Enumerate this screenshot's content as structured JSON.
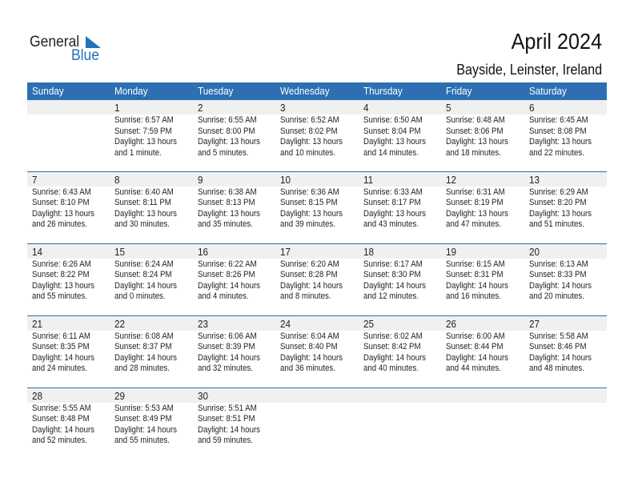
{
  "logo": {
    "text_general": "General",
    "text_blue": "Blue"
  },
  "title": "April 2024",
  "location": "Bayside, Leinster, Ireland",
  "colors": {
    "header": "#2d6fb2",
    "band": "#f0f0f0",
    "logo_blue": "#2471b9"
  },
  "weekdays": [
    "Sunday",
    "Monday",
    "Tuesday",
    "Wednesday",
    "Thursday",
    "Friday",
    "Saturday"
  ],
  "weeks": [
    [
      null,
      {
        "day": "1",
        "sunrise": "Sunrise: 6:57 AM",
        "sunset": "Sunset: 7:59 PM",
        "daylight1": "Daylight: 13 hours",
        "daylight2": "and 1 minute."
      },
      {
        "day": "2",
        "sunrise": "Sunrise: 6:55 AM",
        "sunset": "Sunset: 8:00 PM",
        "daylight1": "Daylight: 13 hours",
        "daylight2": "and 5 minutes."
      },
      {
        "day": "3",
        "sunrise": "Sunrise: 6:52 AM",
        "sunset": "Sunset: 8:02 PM",
        "daylight1": "Daylight: 13 hours",
        "daylight2": "and 10 minutes."
      },
      {
        "day": "4",
        "sunrise": "Sunrise: 6:50 AM",
        "sunset": "Sunset: 8:04 PM",
        "daylight1": "Daylight: 13 hours",
        "daylight2": "and 14 minutes."
      },
      {
        "day": "5",
        "sunrise": "Sunrise: 6:48 AM",
        "sunset": "Sunset: 8:06 PM",
        "daylight1": "Daylight: 13 hours",
        "daylight2": "and 18 minutes."
      },
      {
        "day": "6",
        "sunrise": "Sunrise: 6:45 AM",
        "sunset": "Sunset: 8:08 PM",
        "daylight1": "Daylight: 13 hours",
        "daylight2": "and 22 minutes."
      }
    ],
    [
      {
        "day": "7",
        "sunrise": "Sunrise: 6:43 AM",
        "sunset": "Sunset: 8:10 PM",
        "daylight1": "Daylight: 13 hours",
        "daylight2": "and 26 minutes."
      },
      {
        "day": "8",
        "sunrise": "Sunrise: 6:40 AM",
        "sunset": "Sunset: 8:11 PM",
        "daylight1": "Daylight: 13 hours",
        "daylight2": "and 30 minutes."
      },
      {
        "day": "9",
        "sunrise": "Sunrise: 6:38 AM",
        "sunset": "Sunset: 8:13 PM",
        "daylight1": "Daylight: 13 hours",
        "daylight2": "and 35 minutes."
      },
      {
        "day": "10",
        "sunrise": "Sunrise: 6:36 AM",
        "sunset": "Sunset: 8:15 PM",
        "daylight1": "Daylight: 13 hours",
        "daylight2": "and 39 minutes."
      },
      {
        "day": "11",
        "sunrise": "Sunrise: 6:33 AM",
        "sunset": "Sunset: 8:17 PM",
        "daylight1": "Daylight: 13 hours",
        "daylight2": "and 43 minutes."
      },
      {
        "day": "12",
        "sunrise": "Sunrise: 6:31 AM",
        "sunset": "Sunset: 8:19 PM",
        "daylight1": "Daylight: 13 hours",
        "daylight2": "and 47 minutes."
      },
      {
        "day": "13",
        "sunrise": "Sunrise: 6:29 AM",
        "sunset": "Sunset: 8:20 PM",
        "daylight1": "Daylight: 13 hours",
        "daylight2": "and 51 minutes."
      }
    ],
    [
      {
        "day": "14",
        "sunrise": "Sunrise: 6:26 AM",
        "sunset": "Sunset: 8:22 PM",
        "daylight1": "Daylight: 13 hours",
        "daylight2": "and 55 minutes."
      },
      {
        "day": "15",
        "sunrise": "Sunrise: 6:24 AM",
        "sunset": "Sunset: 8:24 PM",
        "daylight1": "Daylight: 14 hours",
        "daylight2": "and 0 minutes."
      },
      {
        "day": "16",
        "sunrise": "Sunrise: 6:22 AM",
        "sunset": "Sunset: 8:26 PM",
        "daylight1": "Daylight: 14 hours",
        "daylight2": "and 4 minutes."
      },
      {
        "day": "17",
        "sunrise": "Sunrise: 6:20 AM",
        "sunset": "Sunset: 8:28 PM",
        "daylight1": "Daylight: 14 hours",
        "daylight2": "and 8 minutes."
      },
      {
        "day": "18",
        "sunrise": "Sunrise: 6:17 AM",
        "sunset": "Sunset: 8:30 PM",
        "daylight1": "Daylight: 14 hours",
        "daylight2": "and 12 minutes."
      },
      {
        "day": "19",
        "sunrise": "Sunrise: 6:15 AM",
        "sunset": "Sunset: 8:31 PM",
        "daylight1": "Daylight: 14 hours",
        "daylight2": "and 16 minutes."
      },
      {
        "day": "20",
        "sunrise": "Sunrise: 6:13 AM",
        "sunset": "Sunset: 8:33 PM",
        "daylight1": "Daylight: 14 hours",
        "daylight2": "and 20 minutes."
      }
    ],
    [
      {
        "day": "21",
        "sunrise": "Sunrise: 6:11 AM",
        "sunset": "Sunset: 8:35 PM",
        "daylight1": "Daylight: 14 hours",
        "daylight2": "and 24 minutes."
      },
      {
        "day": "22",
        "sunrise": "Sunrise: 6:08 AM",
        "sunset": "Sunset: 8:37 PM",
        "daylight1": "Daylight: 14 hours",
        "daylight2": "and 28 minutes."
      },
      {
        "day": "23",
        "sunrise": "Sunrise: 6:06 AM",
        "sunset": "Sunset: 8:39 PM",
        "daylight1": "Daylight: 14 hours",
        "daylight2": "and 32 minutes."
      },
      {
        "day": "24",
        "sunrise": "Sunrise: 6:04 AM",
        "sunset": "Sunset: 8:40 PM",
        "daylight1": "Daylight: 14 hours",
        "daylight2": "and 36 minutes."
      },
      {
        "day": "25",
        "sunrise": "Sunrise: 6:02 AM",
        "sunset": "Sunset: 8:42 PM",
        "daylight1": "Daylight: 14 hours",
        "daylight2": "and 40 minutes."
      },
      {
        "day": "26",
        "sunrise": "Sunrise: 6:00 AM",
        "sunset": "Sunset: 8:44 PM",
        "daylight1": "Daylight: 14 hours",
        "daylight2": "and 44 minutes."
      },
      {
        "day": "27",
        "sunrise": "Sunrise: 5:58 AM",
        "sunset": "Sunset: 8:46 PM",
        "daylight1": "Daylight: 14 hours",
        "daylight2": "and 48 minutes."
      }
    ],
    [
      {
        "day": "28",
        "sunrise": "Sunrise: 5:55 AM",
        "sunset": "Sunset: 8:48 PM",
        "daylight1": "Daylight: 14 hours",
        "daylight2": "and 52 minutes."
      },
      {
        "day": "29",
        "sunrise": "Sunrise: 5:53 AM",
        "sunset": "Sunset: 8:49 PM",
        "daylight1": "Daylight: 14 hours",
        "daylight2": "and 55 minutes."
      },
      {
        "day": "30",
        "sunrise": "Sunrise: 5:51 AM",
        "sunset": "Sunset: 8:51 PM",
        "daylight1": "Daylight: 14 hours",
        "daylight2": "and 59 minutes."
      },
      null,
      null,
      null,
      null
    ]
  ]
}
